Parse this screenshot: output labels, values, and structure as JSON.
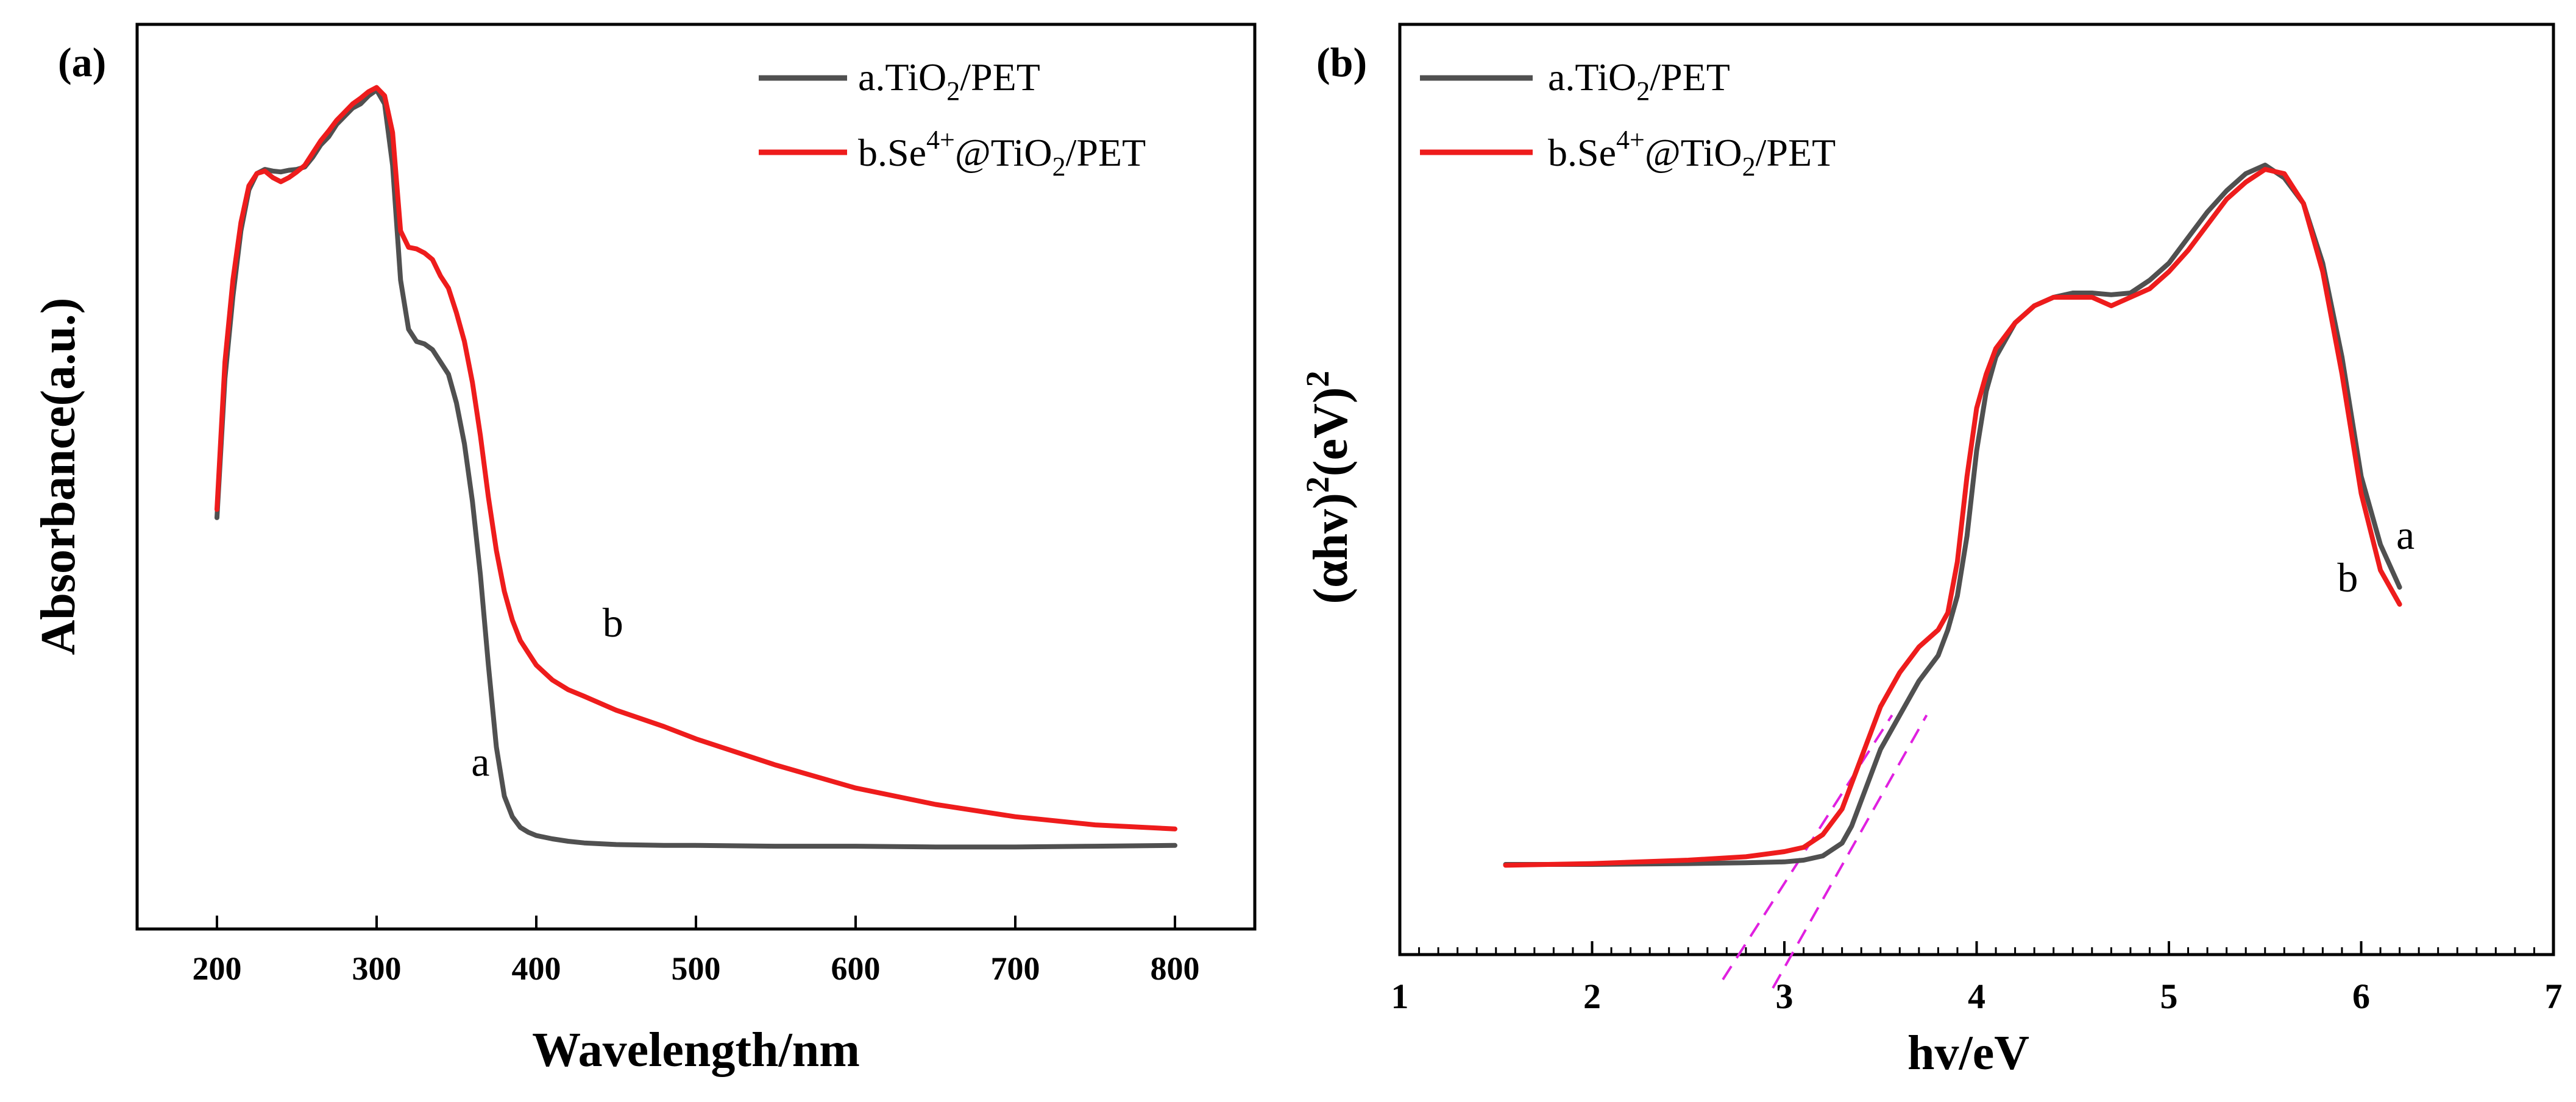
{
  "chart_data": [
    {
      "panel_label": "(a)",
      "type": "line",
      "title": "",
      "xlabel": "Wavelength/nm",
      "ylabel": "Absorbance(a.u.)",
      "xlim": [
        150,
        850
      ],
      "ylim": [
        0,
        1
      ],
      "xticks": [
        200,
        300,
        400,
        500,
        600,
        700,
        800
      ],
      "yticks_shown": false,
      "legend_position": "top-right",
      "legend": [
        {
          "prefix": "a.TiO",
          "sub": "2",
          "suffix": "/PET",
          "color": "#505050"
        },
        {
          "prefix": "b.Se",
          "sup": "4+",
          "mid": "@TiO",
          "sub": "2",
          "suffix": "/PET",
          "color": "#ee1c1c"
        }
      ],
      "series": [
        {
          "name": "a.TiO2/PET",
          "color": "#505050",
          "tag": "a",
          "x": [
            200,
            205,
            210,
            215,
            220,
            225,
            230,
            235,
            240,
            245,
            250,
            255,
            260,
            265,
            270,
            275,
            280,
            285,
            290,
            295,
            300,
            305,
            310,
            315,
            320,
            325,
            330,
            335,
            340,
            345,
            350,
            355,
            360,
            365,
            370,
            375,
            380,
            385,
            390,
            395,
            400,
            410,
            420,
            430,
            450,
            480,
            500,
            550,
            600,
            650,
            700,
            750,
            800
          ],
          "y": [
            0.45,
            0.62,
            0.72,
            0.8,
            0.85,
            0.87,
            0.875,
            0.873,
            0.872,
            0.874,
            0.875,
            0.878,
            0.89,
            0.905,
            0.915,
            0.93,
            0.94,
            0.95,
            0.955,
            0.965,
            0.972,
            0.955,
            0.88,
            0.74,
            0.68,
            0.665,
            0.662,
            0.655,
            0.64,
            0.625,
            0.59,
            0.54,
            0.47,
            0.38,
            0.27,
            0.17,
            0.11,
            0.085,
            0.072,
            0.066,
            0.062,
            0.058,
            0.055,
            0.053,
            0.051,
            0.05,
            0.05,
            0.049,
            0.049,
            0.048,
            0.048,
            0.049,
            0.05
          ]
        },
        {
          "name": "b.Se4+@TiO2/PET",
          "color": "#ee1c1c",
          "tag": "b",
          "x": [
            200,
            205,
            210,
            215,
            220,
            225,
            230,
            235,
            240,
            245,
            250,
            255,
            260,
            265,
            270,
            275,
            280,
            285,
            290,
            295,
            300,
            305,
            310,
            315,
            320,
            325,
            330,
            335,
            340,
            345,
            350,
            355,
            360,
            365,
            370,
            375,
            380,
            385,
            390,
            395,
            400,
            410,
            420,
            430,
            450,
            480,
            500,
            550,
            600,
            650,
            700,
            750,
            800
          ],
          "y": [
            0.46,
            0.64,
            0.74,
            0.81,
            0.855,
            0.87,
            0.873,
            0.865,
            0.86,
            0.865,
            0.872,
            0.88,
            0.895,
            0.91,
            0.922,
            0.935,
            0.945,
            0.955,
            0.962,
            0.97,
            0.975,
            0.965,
            0.92,
            0.8,
            0.78,
            0.778,
            0.773,
            0.765,
            0.745,
            0.73,
            0.7,
            0.665,
            0.615,
            0.55,
            0.475,
            0.41,
            0.36,
            0.325,
            0.3,
            0.285,
            0.27,
            0.252,
            0.24,
            0.232,
            0.215,
            0.195,
            0.18,
            0.148,
            0.12,
            0.1,
            0.085,
            0.075,
            0.07
          ]
        }
      ],
      "annotations": [
        {
          "text": "a",
          "x": 365,
          "y": 0.135
        },
        {
          "text": "b",
          "x": 448,
          "y": 0.305
        }
      ]
    },
    {
      "panel_label": "(b)",
      "type": "line",
      "title": "",
      "xlabel": "hv/eV",
      "ylabel_parts": {
        "p1": "(αhv)",
        "p2": "2",
        "p3": "(eV)",
        "p4": "2"
      },
      "xlim": [
        1,
        7
      ],
      "ylim": [
        0,
        1
      ],
      "xticks": [
        1,
        2,
        3,
        4,
        5,
        6,
        7
      ],
      "yticks_shown": false,
      "legend_position": "top-left",
      "legend": [
        {
          "prefix": "a.TiO",
          "sub": "2",
          "suffix": "/PET",
          "color": "#505050"
        },
        {
          "prefix": "b.Se",
          "sup": "4+",
          "mid": "@TiO",
          "sub": "2",
          "suffix": "/PET",
          "color": "#ee1c1c"
        }
      ],
      "series": [
        {
          "name": "a.TiO2/PET",
          "color": "#505050",
          "tag": "a",
          "x": [
            1.55,
            2.0,
            2.5,
            2.8,
            3.0,
            3.1,
            3.2,
            3.3,
            3.35,
            3.4,
            3.45,
            3.5,
            3.6,
            3.7,
            3.8,
            3.85,
            3.9,
            3.95,
            4.0,
            4.05,
            4.1,
            4.2,
            4.3,
            4.4,
            4.5,
            4.6,
            4.7,
            4.8,
            4.9,
            5.0,
            5.1,
            5.2,
            5.3,
            5.4,
            5.5,
            5.6,
            5.7,
            5.8,
            5.9,
            6.0,
            6.1,
            6.2
          ],
          "y": [
            0.065,
            0.065,
            0.066,
            0.067,
            0.068,
            0.07,
            0.075,
            0.09,
            0.11,
            0.14,
            0.17,
            0.2,
            0.24,
            0.28,
            0.31,
            0.34,
            0.38,
            0.45,
            0.55,
            0.62,
            0.66,
            0.7,
            0.72,
            0.73,
            0.735,
            0.735,
            0.733,
            0.735,
            0.75,
            0.77,
            0.8,
            0.83,
            0.855,
            0.875,
            0.885,
            0.87,
            0.84,
            0.77,
            0.66,
            0.52,
            0.44,
            0.39
          ]
        },
        {
          "name": "b.Se4+@TiO2/PET",
          "color": "#ee1c1c",
          "tag": "b",
          "x": [
            1.55,
            2.0,
            2.5,
            2.8,
            3.0,
            3.1,
            3.2,
            3.3,
            3.35,
            3.4,
            3.45,
            3.5,
            3.6,
            3.7,
            3.8,
            3.85,
            3.9,
            3.95,
            4.0,
            4.05,
            4.1,
            4.2,
            4.3,
            4.4,
            4.5,
            4.6,
            4.7,
            4.8,
            4.9,
            5.0,
            5.1,
            5.2,
            5.3,
            5.4,
            5.5,
            5.6,
            5.7,
            5.8,
            5.9,
            6.0,
            6.1,
            6.2
          ],
          "y": [
            0.064,
            0.066,
            0.07,
            0.074,
            0.08,
            0.085,
            0.1,
            0.13,
            0.16,
            0.19,
            0.22,
            0.25,
            0.29,
            0.32,
            0.34,
            0.36,
            0.42,
            0.52,
            0.6,
            0.64,
            0.67,
            0.7,
            0.72,
            0.73,
            0.73,
            0.73,
            0.72,
            0.73,
            0.74,
            0.76,
            0.785,
            0.815,
            0.845,
            0.865,
            0.88,
            0.875,
            0.84,
            0.76,
            0.64,
            0.5,
            0.41,
            0.37
          ]
        }
      ],
      "tangent_lines": [
        {
          "color": "#e020e0",
          "x": [
            2.68,
            3.56
          ],
          "y": [
            -0.07,
            0.24
          ]
        },
        {
          "color": "#e020e0",
          "x": [
            2.94,
            3.74
          ],
          "y": [
            -0.08,
            0.24
          ]
        }
      ],
      "annotations": [
        {
          "text": "a",
          "x": 6.23,
          "y": 0.435
        },
        {
          "text": "b",
          "x": 5.93,
          "y": 0.385
        }
      ]
    }
  ]
}
